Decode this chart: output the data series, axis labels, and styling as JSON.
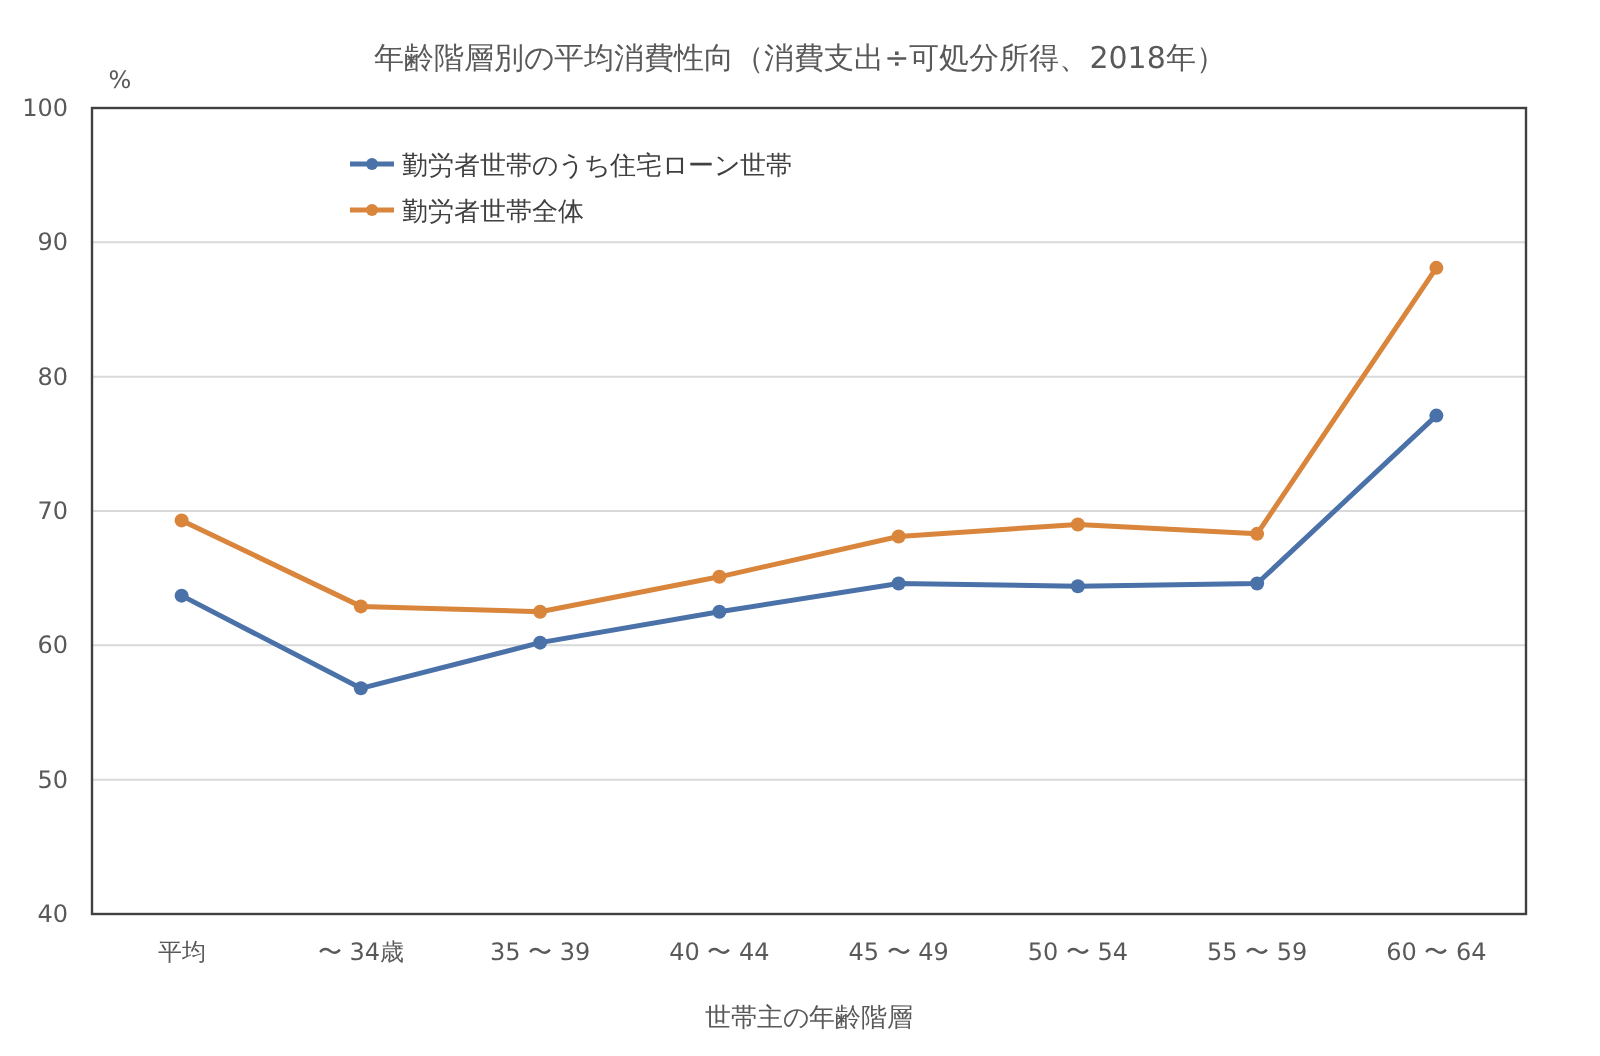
{
  "chart_data": {
    "type": "line",
    "title": "年齢階層別の平均消費性向（消費支出÷可処分所得、2018年）",
    "ylabel": "%",
    "xlabel": "世帯主の年齢階層",
    "categories": [
      "平均",
      "〜 34歳",
      "35 〜 39",
      "40 〜 44",
      "45 〜 49",
      "50 〜 54",
      "55 〜 59",
      "60 〜 64"
    ],
    "series": [
      {
        "name": "勤労者世帯のうち住宅ローン世帯",
        "color": "#4a72a8",
        "values": [
          63.7,
          56.8,
          60.2,
          62.5,
          64.6,
          64.4,
          64.6,
          77.1
        ]
      },
      {
        "name": "勤労者世帯全体",
        "color": "#d9853b",
        "values": [
          69.3,
          62.9,
          62.5,
          65.1,
          68.1,
          69.0,
          68.3,
          88.1
        ]
      }
    ],
    "ylim": [
      40,
      100
    ],
    "yticks": [
      40,
      50,
      60,
      70,
      80,
      90,
      100
    ],
    "grid": "y",
    "legend": "top left",
    "marker": "circle",
    "line_style": "solid"
  }
}
